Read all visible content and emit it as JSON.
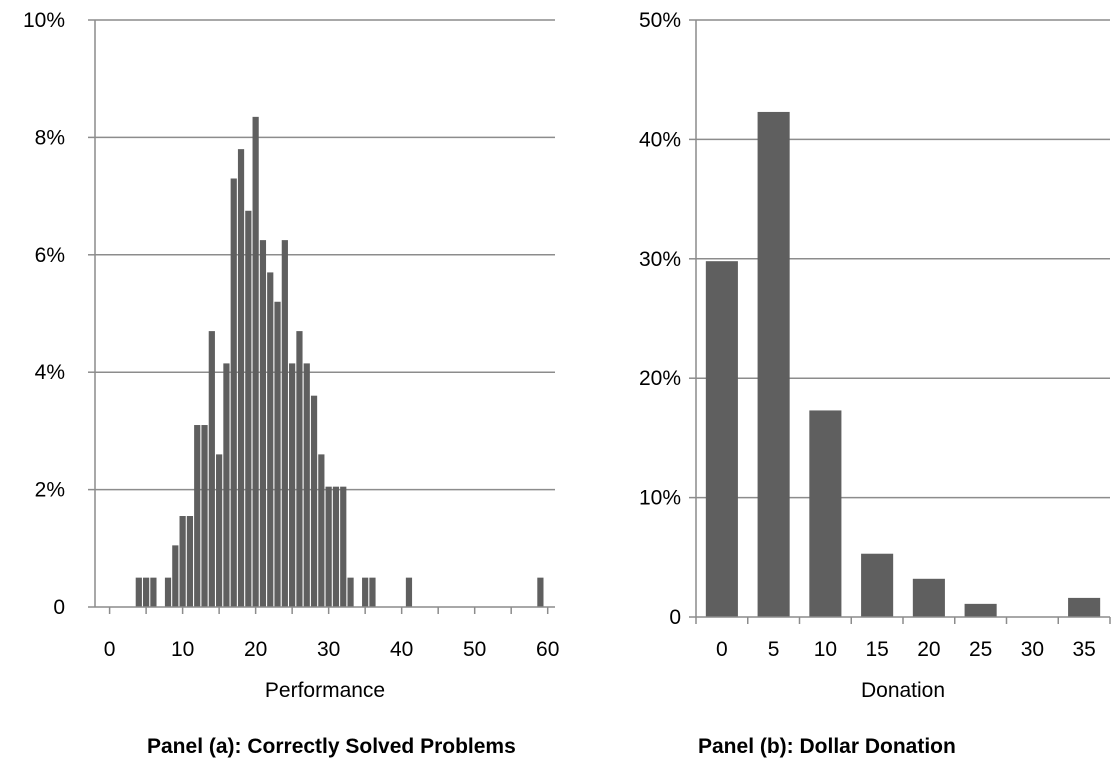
{
  "colors": {
    "bar": "#5f5f5f",
    "grid": "#8c8c8c",
    "axis": "#8c8c8c",
    "text": "#000000"
  },
  "chart_data": [
    {
      "type": "bar",
      "caption": "Panel (a): Correctly Solved Problems",
      "xlabel": "Performance",
      "ylabel": "",
      "xlim": [
        -2,
        61
      ],
      "ylim": [
        0,
        10
      ],
      "yticks": [
        0,
        2,
        4,
        6,
        8,
        10
      ],
      "ytick_labels": [
        "0",
        "2%",
        "4%",
        "6%",
        "8%",
        "10%"
      ],
      "xticks": [
        0,
        10,
        20,
        30,
        40,
        50,
        60
      ],
      "xtick_labels": [
        "0",
        "10",
        "20",
        "30",
        "40",
        "50",
        "60"
      ],
      "grid": true,
      "legend": "none",
      "x": [
        4,
        5,
        6,
        8,
        9,
        10,
        11,
        12,
        13,
        14,
        15,
        16,
        17,
        18,
        19,
        20,
        21,
        22,
        23,
        24,
        25,
        26,
        27,
        28,
        29,
        30,
        31,
        32,
        33,
        35,
        36,
        41,
        59
      ],
      "values": [
        0.5,
        0.5,
        0.5,
        0.5,
        1.05,
        1.55,
        1.55,
        3.1,
        3.1,
        4.7,
        2.6,
        4.15,
        7.3,
        7.8,
        6.75,
        8.35,
        6.25,
        5.7,
        5.2,
        6.25,
        4.15,
        4.7,
        4.15,
        3.6,
        2.6,
        2.05,
        2.05,
        2.05,
        0.5,
        0.5,
        0.5,
        0.5,
        0.5
      ]
    },
    {
      "type": "bar",
      "caption": "Panel (b): Dollar Donation",
      "xlabel": "Donation",
      "ylabel": "",
      "ylim": [
        0,
        50
      ],
      "yticks": [
        0,
        10,
        20,
        30,
        40,
        50
      ],
      "ytick_labels": [
        "0",
        "10%",
        "20%",
        "30%",
        "40%",
        "50%"
      ],
      "grid": true,
      "legend": "none",
      "categories": [
        "0",
        "5",
        "10",
        "15",
        "20",
        "25",
        "30",
        "35"
      ],
      "values": [
        29.8,
        42.3,
        17.3,
        5.3,
        3.2,
        1.1,
        0,
        1.6
      ]
    }
  ]
}
